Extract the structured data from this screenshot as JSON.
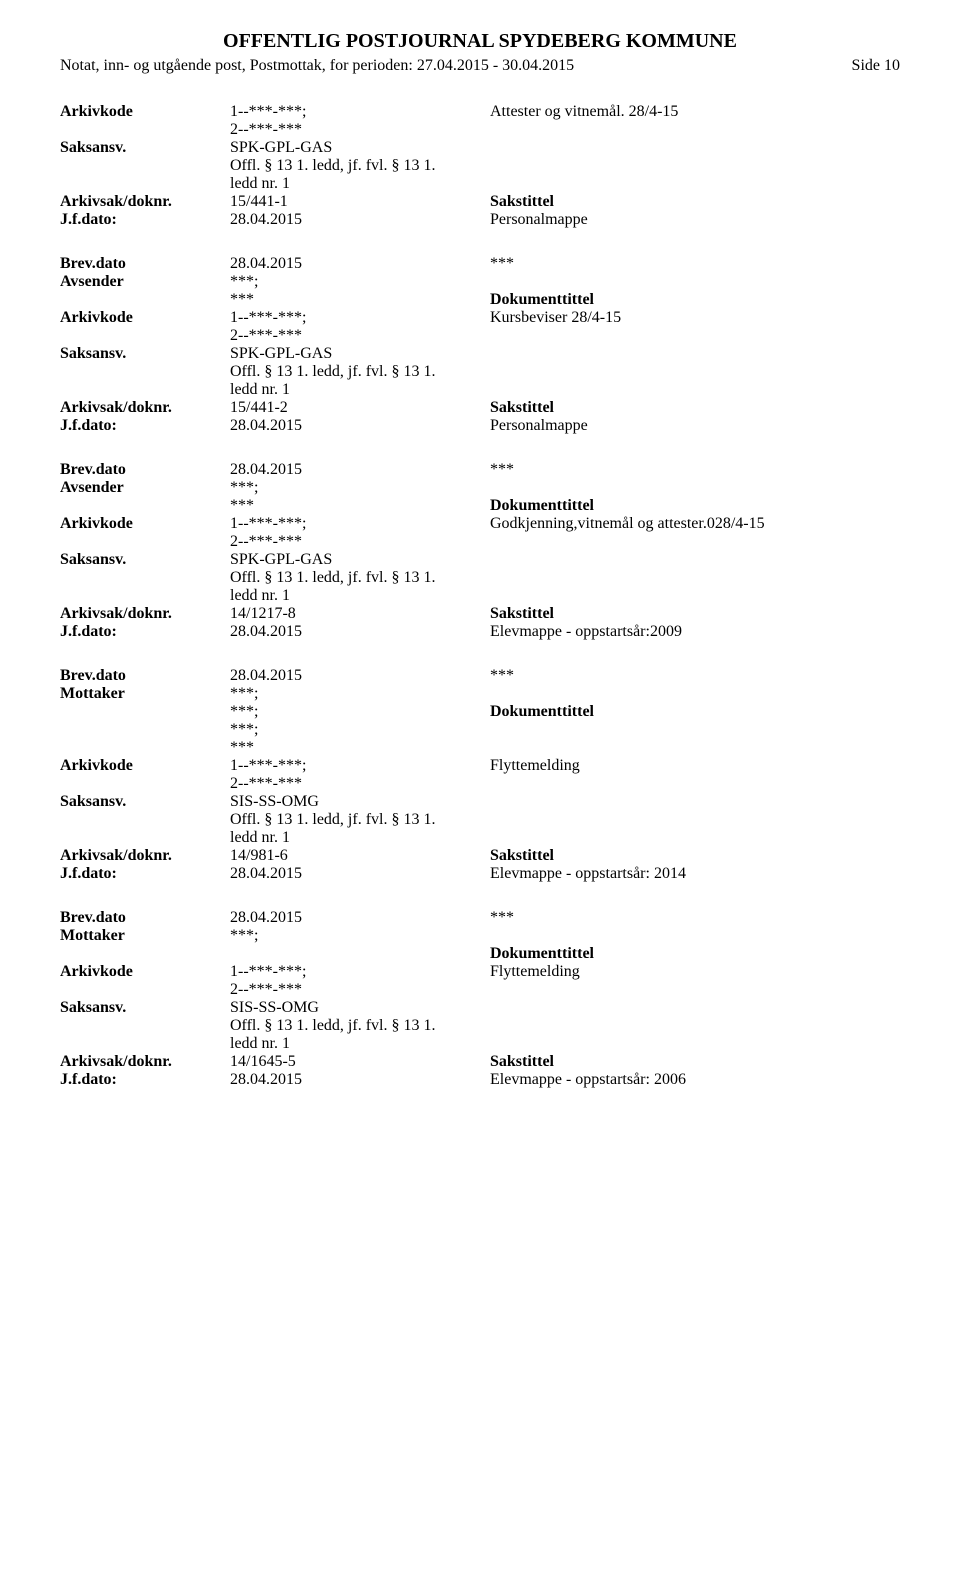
{
  "header": {
    "title": "OFFENTLIG POSTJOURNAL SPYDEBERG KOMMUNE",
    "subtitle": "Notat, inn- og utgående post, Postmottak, for perioden: 27.04.2015 - 30.04.2015",
    "page": "Side 10"
  },
  "labels": {
    "arkivkode": "Arkivkode",
    "saksansv": "Saksansv.",
    "arkivsak": "Arkivsak/doknr.",
    "jfdato": "J.f.dato:",
    "brevdato": "Brev.dato",
    "avsender": "Avsender",
    "mottaker": "Mottaker",
    "sakstittel": "Sakstittel",
    "dokumenttittel": "Dokumenttittel"
  },
  "entries": [
    {
      "arkivkode_val": "1--***-***;",
      "arkivkode_val2": "2--***-***",
      "arkivkode_right": "Attester og vitnemål. 28/4-15",
      "saksansv_val": "SPK-GPL-GAS",
      "offl1": "Offl. § 13 1. ledd, jf. fvl. § 13 1.",
      "offl2": "ledd nr. 1",
      "arkivsak_val": "15/441-1",
      "jfdato_val": "28.04.2015",
      "jfdato_right": "Personalmappe"
    },
    {
      "brevdato_val": "28.04.2015",
      "brevdato_right": "***",
      "party_label": "Avsender",
      "party_val1": "***;",
      "party_val2": "***",
      "arkivkode_val": "1--***-***;",
      "arkivkode_val2": "2--***-***",
      "arkivkode_right": "Kursbeviser 28/4-15",
      "saksansv_val": "SPK-GPL-GAS",
      "offl1": "Offl. § 13 1. ledd, jf. fvl. § 13 1.",
      "offl2": "ledd nr. 1",
      "arkivsak_val": "15/441-2",
      "jfdato_val": "28.04.2015",
      "jfdato_right": "Personalmappe"
    },
    {
      "brevdato_val": "28.04.2015",
      "brevdato_right": "***",
      "party_label": "Avsender",
      "party_val1": "***;",
      "party_val2": "***",
      "arkivkode_val": "1--***-***;",
      "arkivkode_val2": "2--***-***",
      "arkivkode_right": "Godkjenning,vitnemål og attester.028/4-15",
      "saksansv_val": "SPK-GPL-GAS",
      "offl1": "Offl. § 13 1. ledd, jf. fvl. § 13 1.",
      "offl2": "ledd nr. 1",
      "arkivsak_val": "14/1217-8",
      "jfdato_val": "28.04.2015",
      "jfdato_right": "Elevmappe - oppstartsår:2009"
    },
    {
      "brevdato_val": "28.04.2015",
      "brevdato_right": "***",
      "party_label": "Mottaker",
      "party_vals": [
        "***;",
        "***;",
        "***;",
        "***"
      ],
      "arkivkode_val": "1--***-***;",
      "arkivkode_val2": "2--***-***",
      "arkivkode_right": "Flyttemelding",
      "saksansv_val": "SIS-SS-OMG",
      "offl1": "Offl. § 13 1. ledd, jf. fvl. § 13 1.",
      "offl2": "ledd nr. 1",
      "arkivsak_val": "14/981-6",
      "jfdato_val": "28.04.2015",
      "jfdato_right": "Elevmappe - oppstartsår: 2014"
    },
    {
      "brevdato_val": "28.04.2015",
      "brevdato_right": "***",
      "party_label": "Mottaker",
      "party_vals": [
        "***;"
      ],
      "arkivkode_val": "1--***-***;",
      "arkivkode_val2": "2--***-***",
      "arkivkode_right": "Flyttemelding",
      "saksansv_val": "SIS-SS-OMG",
      "offl1": "Offl. § 13 1. ledd, jf. fvl. § 13 1.",
      "offl2": "ledd nr. 1",
      "arkivsak_val": "14/1645-5",
      "jfdato_val": "28.04.2015",
      "jfdato_right": "Elevmappe - oppstartsår: 2006"
    }
  ]
}
